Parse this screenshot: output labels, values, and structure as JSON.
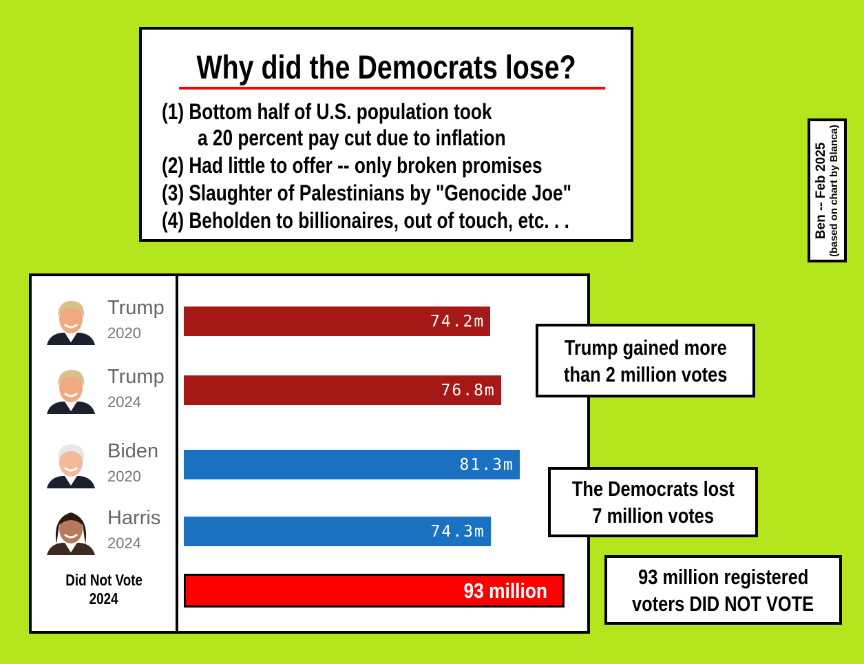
{
  "title": "Why did the Democrats lose?",
  "reasons": [
    "(1) Bottom half of U.S. population took",
    "a 20 percent pay cut due to inflation",
    "(2) Had little to offer -- only broken promises",
    "(3) Slaughter of Palestinians by \"Genocide Joe\"",
    "(4) Beholden to billionaires, out of touch, etc. . ."
  ],
  "credit": {
    "line1": "Ben -- Feb 2025",
    "line2": "(based on chart by Blanca)"
  },
  "colors": {
    "background": "#b5e61d",
    "republican": "#a51916",
    "democrat": "#1a71c2",
    "did_not_vote": "#ff0000"
  },
  "chart_data": {
    "type": "bar",
    "orientation": "horizontal",
    "unit": "million votes",
    "categories": [
      {
        "name": "Trump",
        "year": "2020"
      },
      {
        "name": "Trump",
        "year": "2024"
      },
      {
        "name": "Biden",
        "year": "2020"
      },
      {
        "name": "Harris",
        "year": "2024"
      }
    ],
    "values": [
      74.2,
      76.8,
      81.3,
      74.3
    ],
    "labels": [
      "74.2m",
      "76.8m",
      "81.3m",
      "74.3m"
    ],
    "bar_colors": [
      "#a51916",
      "#a51916",
      "#1a71c2",
      "#1a71c2"
    ],
    "did_not_vote": {
      "label_line1": "Did Not Vote",
      "label_line2": "2024",
      "value": 93,
      "bar_label": "93 million"
    }
  },
  "callouts": {
    "trump": [
      "Trump gained more",
      "than 2 million votes"
    ],
    "democrats": [
      "The Democrats lost",
      "7 million votes"
    ],
    "nonvoters": [
      "93 million registered",
      "voters DID NOT VOTE"
    ]
  }
}
